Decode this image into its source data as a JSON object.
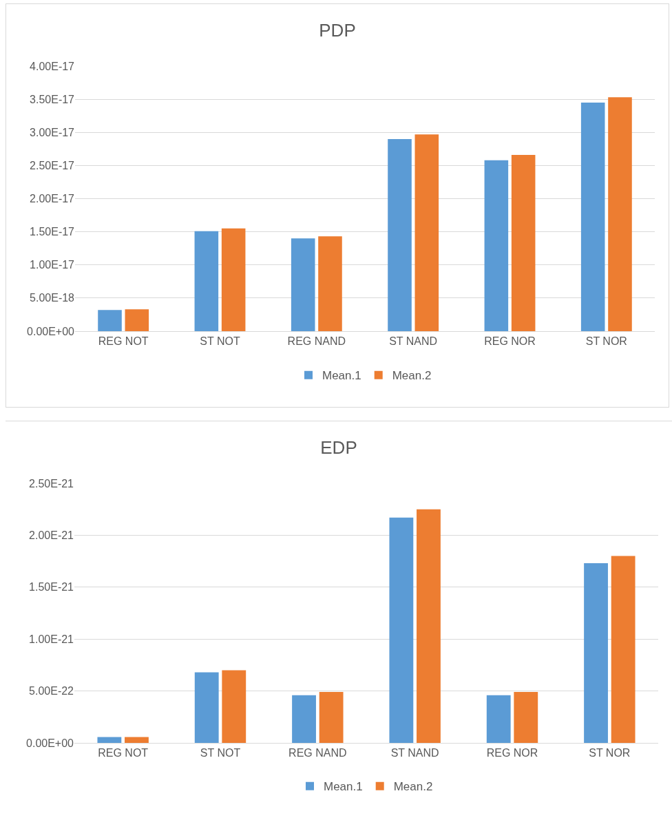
{
  "chart_data": [
    {
      "type": "bar",
      "title": "PDP",
      "categories": [
        "REG NOT",
        "ST NOT",
        "REG NAND",
        "ST NAND",
        "REG NOR",
        "ST NOR"
      ],
      "series": [
        {
          "name": "Mean.1",
          "color": "#5b9bd5",
          "values": [
            3.2e-18,
            1.51e-17,
            1.4e-17,
            2.9e-17,
            2.58e-17,
            3.45e-17
          ]
        },
        {
          "name": "Mean.2",
          "color": "#ed7d31",
          "values": [
            3.3e-18,
            1.55e-17,
            1.43e-17,
            2.97e-17,
            2.66e-17,
            3.53e-17
          ]
        }
      ],
      "ylim": [
        0,
        4e-17
      ],
      "yticks": [
        {
          "value": 0,
          "label": "0.00E+00"
        },
        {
          "value": 5e-18,
          "label": "5.00E-18"
        },
        {
          "value": 1e-17,
          "label": "1.00E-17"
        },
        {
          "value": 1.5e-17,
          "label": "1.50E-17"
        },
        {
          "value": 2e-17,
          "label": "2.00E-17"
        },
        {
          "value": 2.5e-17,
          "label": "2.50E-17"
        },
        {
          "value": 3e-17,
          "label": "3.00E-17"
        },
        {
          "value": 3.5e-17,
          "label": "3.50E-17"
        },
        {
          "value": 4e-17,
          "label": "4.00E-17"
        }
      ],
      "grid": "y",
      "legend": "bottom"
    },
    {
      "type": "bar",
      "title": "EDP",
      "categories": [
        "REG NOT",
        "ST NOT",
        "REG NAND",
        "ST NAND",
        "REG NOR",
        "ST NOR"
      ],
      "series": [
        {
          "name": "Mean.1",
          "color": "#5b9bd5",
          "values": [
            5.6e-23,
            6.8e-22,
            4.6e-22,
            2.17e-21,
            4.6e-22,
            1.73e-21
          ]
        },
        {
          "name": "Mean.2",
          "color": "#ed7d31",
          "values": [
            5.6e-23,
            7e-22,
            4.9e-22,
            2.25e-21,
            4.9e-22,
            1.8e-21
          ]
        }
      ],
      "ylim": [
        0,
        2.5e-21
      ],
      "yticks": [
        {
          "value": 0,
          "label": "0.00E+00"
        },
        {
          "value": 5e-22,
          "label": "5.00E-22"
        },
        {
          "value": 1e-21,
          "label": "1.00E-21"
        },
        {
          "value": 1.5e-21,
          "label": "1.50E-21"
        },
        {
          "value": 2e-21,
          "label": "2.00E-21"
        },
        {
          "value": 2.5e-21,
          "label": "2.50E-21"
        }
      ],
      "grid": "y",
      "legend": "bottom"
    }
  ]
}
